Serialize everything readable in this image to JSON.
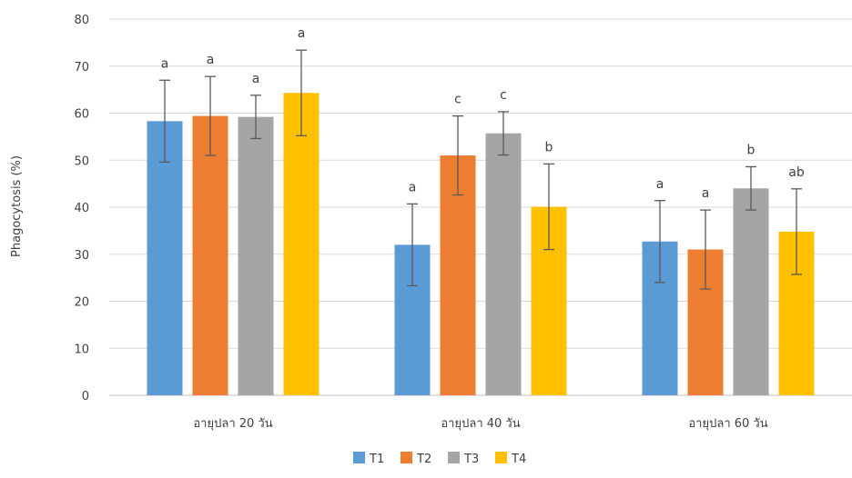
{
  "chart_data": {
    "type": "bar",
    "title": "",
    "xlabel": "",
    "ylabel": "Phagocytosis (%)",
    "ylim": [
      0,
      80
    ],
    "yticks": [
      0,
      10,
      20,
      30,
      40,
      50,
      60,
      70,
      80
    ],
    "grid": true,
    "legend_position": "bottom",
    "categories": [
      "อายุปลา 20 วัน",
      "อายุปลา 40 วัน",
      "อายุปลา 60 วัน"
    ],
    "series": [
      {
        "name": "T1",
        "color": "#5B9BD5",
        "values": [
          58.3,
          32.0,
          32.7
        ],
        "errors": [
          8.7,
          8.7,
          8.7
        ],
        "labels": [
          "a",
          "a",
          "a"
        ]
      },
      {
        "name": "T2",
        "color": "#ED7D31",
        "values": [
          59.4,
          51.0,
          31.0
        ],
        "errors": [
          8.4,
          8.4,
          8.4
        ],
        "labels": [
          "a",
          "c",
          "a"
        ]
      },
      {
        "name": "T3",
        "color": "#A5A5A5",
        "values": [
          59.2,
          55.7,
          44.0
        ],
        "errors": [
          4.6,
          4.6,
          4.6
        ],
        "labels": [
          "a",
          "c",
          "b"
        ]
      },
      {
        "name": "T4",
        "color": "#FFC000",
        "values": [
          64.3,
          40.1,
          34.8
        ],
        "errors": [
          9.1,
          9.1,
          9.1
        ],
        "labels": [
          "a",
          "b",
          "ab"
        ]
      }
    ]
  }
}
